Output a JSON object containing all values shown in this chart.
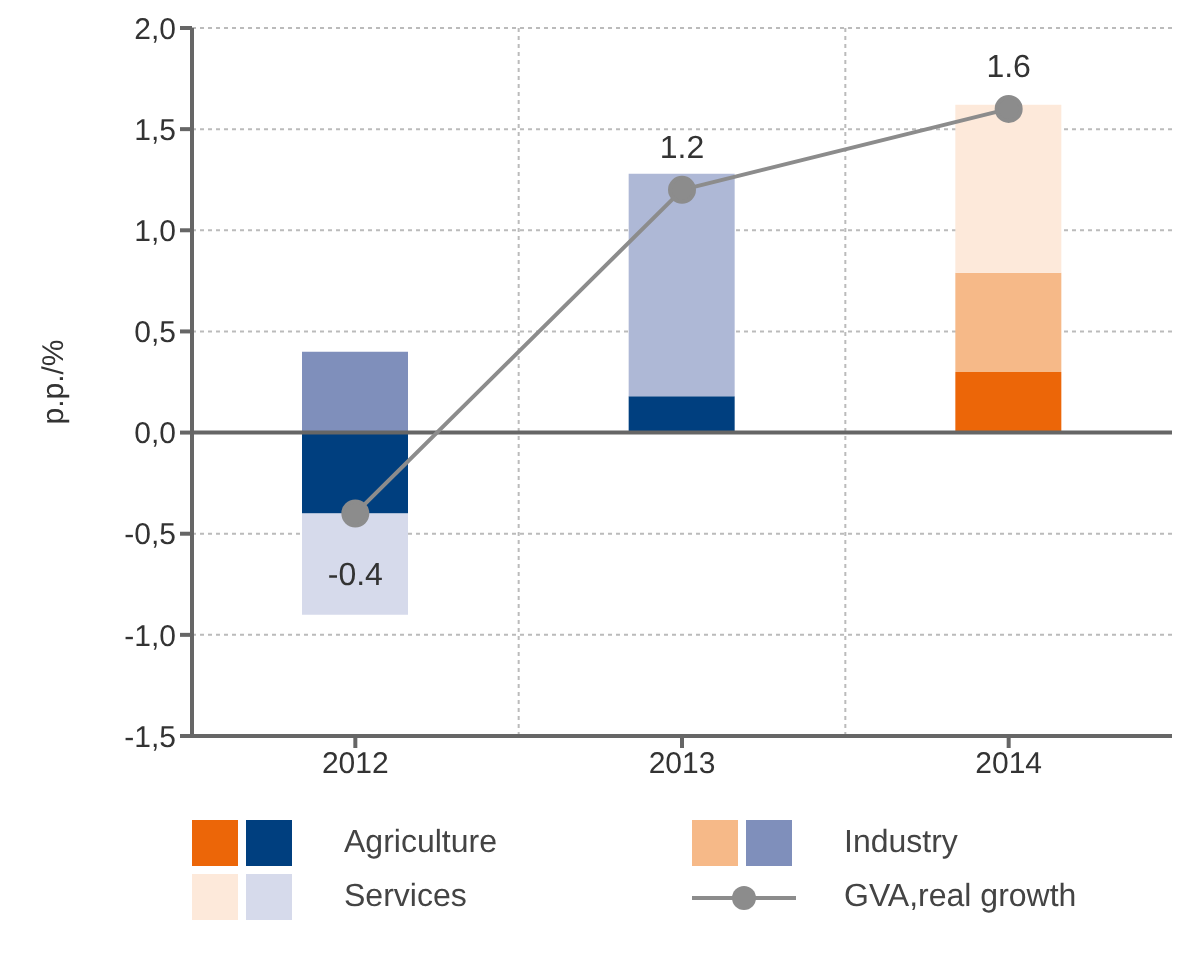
{
  "chart_data": {
    "type": "bar",
    "stacked": true,
    "ylabel": "p.p./%",
    "categories": [
      "2012",
      "2013",
      "2014"
    ],
    "series": [
      {
        "name": "Agriculture",
        "colors": [
          "#003f7f",
          "#003f7f",
          "#ec6608"
        ],
        "values": [
          -0.4,
          0.18,
          0.3
        ]
      },
      {
        "name": "Industry",
        "colors": [
          "#7f8fbb",
          null,
          "#f6b988"
        ],
        "values": [
          0.4,
          null,
          0.49
        ]
      },
      {
        "name": "Services",
        "colors": [
          "#d6daeb",
          "#aeb8d6",
          "#fde9da"
        ],
        "values": [
          -0.5,
          1.1,
          0.83
        ]
      },
      {
        "name": "GVA,real growth",
        "type": "line",
        "color": "#8c8c8c",
        "marker": "circle",
        "values": [
          -0.4,
          1.2,
          1.6
        ],
        "value_labels": [
          "-0.4",
          "1.2",
          "1.6"
        ]
      }
    ],
    "ylim": [
      -1.5,
      2.0
    ],
    "yticks": [
      {
        "value": -1.5,
        "label": "-1,5"
      },
      {
        "value": -1.0,
        "label": "-1,0"
      },
      {
        "value": -0.5,
        "label": "-0,5"
      },
      {
        "value": 0,
        "label": "0,0"
      },
      {
        "value": 0.5,
        "label": "0,5"
      },
      {
        "value": 1.0,
        "label": "1,0"
      },
      {
        "value": 1.5,
        "label": "1,5"
      },
      {
        "value": 2.0,
        "label": "2,0"
      }
    ],
    "ref_lines": [
      {
        "axis": "y",
        "value": 0,
        "color": "#666666",
        "line_style": "solid"
      }
    ],
    "grid": true,
    "legend": "bottom"
  }
}
